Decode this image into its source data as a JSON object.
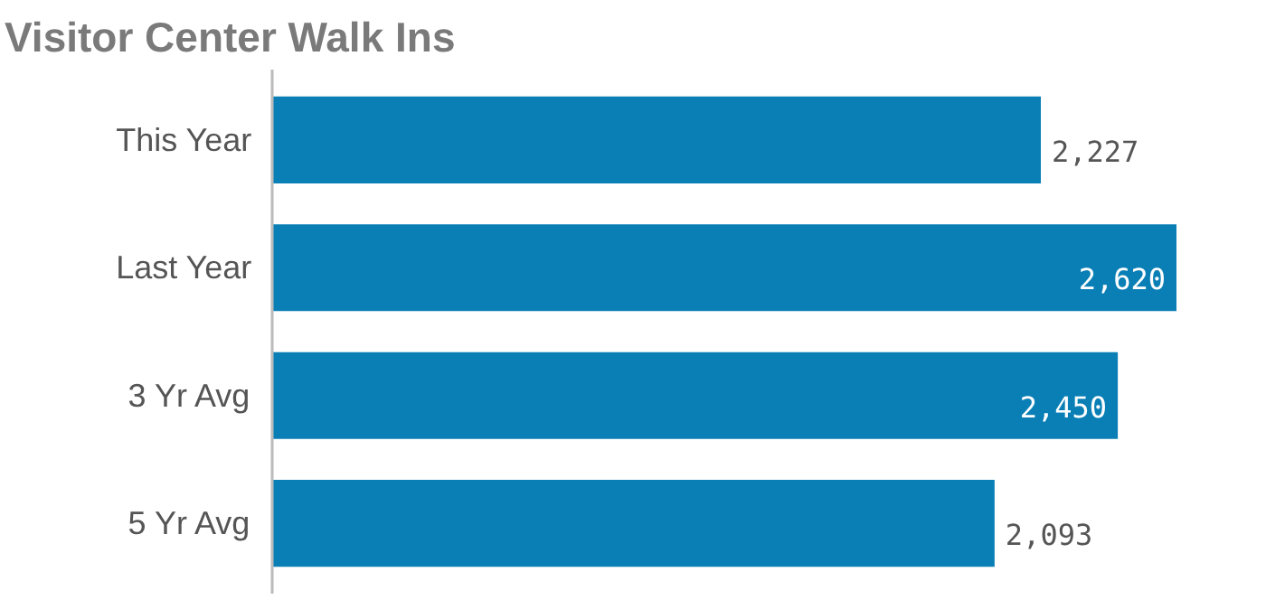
{
  "chart_data": {
    "type": "bar",
    "orientation": "horizontal",
    "title": "Visitor Center Walk Ins",
    "categories": [
      "This Year",
      "Last Year",
      "3 Yr Avg",
      "5 Yr Avg"
    ],
    "values": [
      2227,
      2620,
      2450,
      2093
    ],
    "color": "#0a7fb5",
    "value_labels": [
      "2,227",
      "2,620",
      "2,450",
      "2,093"
    ]
  }
}
